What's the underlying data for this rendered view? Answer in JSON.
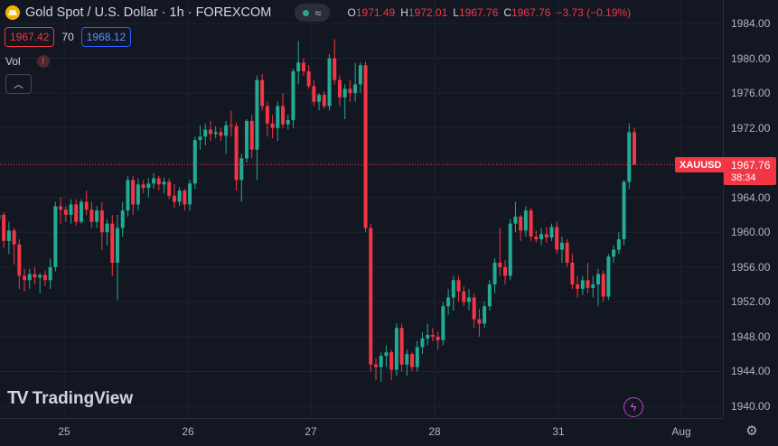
{
  "legend": {
    "symbol_title": "Gold Spot / U.S. Dollar · 1h · FOREXCOM",
    "logo_icon": "gold-bar-icon",
    "status_icons": [
      "market-open-dot-icon",
      "wave-icon"
    ],
    "ohlc": {
      "o_label": "O",
      "o_value": "1971.49",
      "h_label": "H",
      "h_value": "1972.01",
      "l_label": "L",
      "l_value": "1967.76",
      "c_label": "C",
      "c_value": "1967.76",
      "change": "−3.73 (−0.19%)"
    }
  },
  "bid_ask": {
    "bid": "1967.42",
    "spread": "70",
    "ask": "1968.12"
  },
  "volume": {
    "label": "Vol",
    "warning_icon": "warning-icon",
    "collapse_icon": "chevron-up-icon"
  },
  "branding": {
    "logo_mark": "TV",
    "logo_text": "TradingView"
  },
  "last_price": {
    "symbol": "XAUUSD",
    "value": "1967.76",
    "countdown": "38:34"
  },
  "icons": {
    "lightning": "lightning-icon",
    "settings": "gear-icon"
  },
  "colors": {
    "up": "#22ab94",
    "down": "#f23645",
    "background": "#131722",
    "grid": "#1e222d",
    "accent_blue": "#2962ff"
  },
  "chart_data": {
    "type": "candlestick",
    "timeframe": "1h",
    "ylim": [
      1938,
      1986
    ],
    "price_ticks": [
      1984.0,
      1980.0,
      1976.0,
      1972.0,
      1968.0,
      1964.0,
      1960.0,
      1956.0,
      1952.0,
      1948.0,
      1944.0,
      1940.0
    ],
    "time_ticks": [
      "25",
      "26",
      "27",
      "28",
      "31",
      "Aug"
    ],
    "last_price": 1967.76,
    "candles": [
      [
        1966.0,
        1968.0,
        1966.0,
        1967.5
      ],
      [
        1967.5,
        1968.0,
        1965.5,
        1965.8
      ],
      [
        1965.8,
        1967.5,
        1958.5,
        1960.0
      ],
      [
        1960.0,
        1962.5,
        1958.5,
        1961.5
      ],
      [
        1961.5,
        1963.0,
        1960.5,
        1962.0
      ],
      [
        1962.0,
        1962.3,
        1958.2,
        1959.0
      ],
      [
        1959.0,
        1961.2,
        1957.5,
        1960.2
      ],
      [
        1960.2,
        1960.5,
        1956.3,
        1958.6
      ],
      [
        1958.6,
        1959.2,
        1953.5,
        1955.0
      ],
      [
        1955.0,
        1955.8,
        1953.2,
        1954.5
      ],
      [
        1954.5,
        1955.8,
        1953.5,
        1955.2
      ],
      [
        1955.2,
        1956.0,
        1954.0,
        1954.8
      ],
      [
        1954.8,
        1955.3,
        1953.0,
        1955.1
      ],
      [
        1955.1,
        1955.6,
        1953.8,
        1954.5
      ],
      [
        1954.5,
        1957.0,
        1953.5,
        1956.0
      ],
      [
        1956.0,
        1963.5,
        1955.5,
        1963.0
      ],
      [
        1963.0,
        1964.0,
        1961.0,
        1962.6
      ],
      [
        1962.6,
        1963.0,
        1961.2,
        1962.0
      ],
      [
        1962.0,
        1963.8,
        1961.0,
        1963.2
      ],
      [
        1963.2,
        1963.8,
        1960.8,
        1961.2
      ],
      [
        1961.2,
        1963.8,
        1961.0,
        1963.5
      ],
      [
        1963.5,
        1964.8,
        1962.0,
        1962.6
      ],
      [
        1962.6,
        1963.5,
        1960.5,
        1961.2
      ],
      [
        1961.2,
        1963.0,
        1960.5,
        1962.5
      ],
      [
        1962.5,
        1963.5,
        1958.0,
        1960.0
      ],
      [
        1960.0,
        1961.5,
        1958.5,
        1961.0
      ],
      [
        1961.0,
        1962.0,
        1955.0,
        1956.5
      ],
      [
        1956.5,
        1962.0,
        1952.2,
        1960.5
      ],
      [
        1960.5,
        1963.5,
        1959.5,
        1962.5
      ],
      [
        1962.5,
        1966.5,
        1961.8,
        1966.0
      ],
      [
        1966.0,
        1966.5,
        1962.0,
        1963.2
      ],
      [
        1963.2,
        1966.2,
        1962.5,
        1965.5
      ],
      [
        1965.5,
        1966.0,
        1964.5,
        1965.1
      ],
      [
        1965.1,
        1966.2,
        1964.0,
        1965.6
      ],
      [
        1965.6,
        1966.8,
        1965.0,
        1966.2
      ],
      [
        1966.2,
        1966.5,
        1964.8,
        1965.5
      ],
      [
        1965.5,
        1966.3,
        1964.5,
        1965.8
      ],
      [
        1965.8,
        1966.2,
        1963.8,
        1964.2
      ],
      [
        1964.2,
        1965.5,
        1962.8,
        1963.5
      ],
      [
        1963.5,
        1965.2,
        1963.0,
        1964.8
      ],
      [
        1964.8,
        1965.0,
        1962.5,
        1963.2
      ],
      [
        1963.2,
        1966.0,
        1962.5,
        1965.6
      ],
      [
        1965.6,
        1971.0,
        1965.0,
        1970.6
      ],
      [
        1970.6,
        1972.3,
        1969.5,
        1971.0
      ],
      [
        1971.0,
        1972.5,
        1970.0,
        1971.8
      ],
      [
        1971.8,
        1972.8,
        1970.5,
        1971.3
      ],
      [
        1971.3,
        1972.2,
        1970.8,
        1971.5
      ],
      [
        1971.5,
        1972.0,
        1970.5,
        1971.1
      ],
      [
        1971.1,
        1972.8,
        1969.0,
        1972.3
      ],
      [
        1972.3,
        1974.0,
        1971.0,
        1972.2
      ],
      [
        1972.2,
        1972.6,
        1964.8,
        1966.0
      ],
      [
        1966.0,
        1969.0,
        1963.5,
        1968.5
      ],
      [
        1968.5,
        1973.0,
        1968.0,
        1972.8
      ],
      [
        1972.8,
        1973.5,
        1968.5,
        1969.5
      ],
      [
        1969.5,
        1978.0,
        1966.0,
        1977.5
      ],
      [
        1977.5,
        1978.2,
        1974.0,
        1974.5
      ],
      [
        1974.5,
        1975.0,
        1971.0,
        1972.5
      ],
      [
        1972.5,
        1973.5,
        1970.8,
        1972.0
      ],
      [
        1972.0,
        1975.0,
        1970.5,
        1974.5
      ],
      [
        1974.5,
        1976.0,
        1972.0,
        1972.4
      ],
      [
        1972.4,
        1973.5,
        1971.8,
        1972.9
      ],
      [
        1972.9,
        1978.8,
        1972.0,
        1978.5
      ],
      [
        1978.5,
        1982.0,
        1977.0,
        1979.5
      ],
      [
        1979.5,
        1980.0,
        1978.0,
        1978.5
      ],
      [
        1978.5,
        1979.2,
        1976.5,
        1976.8
      ],
      [
        1976.8,
        1977.5,
        1974.5,
        1975.0
      ],
      [
        1975.0,
        1976.0,
        1974.0,
        1975.8
      ],
      [
        1975.8,
        1976.2,
        1974.2,
        1974.5
      ],
      [
        1974.5,
        1980.5,
        1974.0,
        1980.0
      ],
      [
        1980.0,
        1982.2,
        1977.0,
        1977.5
      ],
      [
        1977.5,
        1978.0,
        1974.5,
        1975.5
      ],
      [
        1975.5,
        1977.0,
        1973.0,
        1976.5
      ],
      [
        1976.5,
        1977.5,
        1975.0,
        1976.0
      ],
      [
        1976.0,
        1979.5,
        1975.0,
        1977.0
      ],
      [
        1977.0,
        1979.5,
        1976.0,
        1979.2
      ],
      [
        1979.2,
        1979.6,
        1960.0,
        1960.5
      ],
      [
        1960.5,
        1961.0,
        1944.0,
        1944.8
      ],
      [
        1944.8,
        1945.5,
        1943.0,
        1944.5
      ],
      [
        1944.5,
        1946.2,
        1942.8,
        1945.8
      ],
      [
        1945.8,
        1947.0,
        1944.5,
        1946.2
      ],
      [
        1946.2,
        1946.5,
        1943.0,
        1944.2
      ],
      [
        1944.2,
        1949.5,
        1943.5,
        1949.0
      ],
      [
        1949.0,
        1949.5,
        1944.0,
        1944.8
      ],
      [
        1944.8,
        1946.5,
        1943.5,
        1946.0
      ],
      [
        1946.0,
        1946.2,
        1944.0,
        1944.5
      ],
      [
        1944.5,
        1947.5,
        1944.0,
        1946.8
      ],
      [
        1946.8,
        1948.5,
        1946.0,
        1947.8
      ],
      [
        1947.8,
        1949.5,
        1947.0,
        1948.2
      ],
      [
        1948.2,
        1949.0,
        1947.5,
        1948.0
      ],
      [
        1948.0,
        1948.6,
        1946.5,
        1947.6
      ],
      [
        1947.6,
        1952.0,
        1947.0,
        1951.5
      ],
      [
        1951.5,
        1953.5,
        1950.5,
        1952.5
      ],
      [
        1952.5,
        1955.0,
        1951.0,
        1954.5
      ],
      [
        1954.5,
        1955.0,
        1952.0,
        1953.2
      ],
      [
        1953.2,
        1953.8,
        1951.5,
        1952.0
      ],
      [
        1952.0,
        1953.5,
        1951.0,
        1952.5
      ],
      [
        1952.5,
        1953.0,
        1949.0,
        1950.0
      ],
      [
        1950.0,
        1951.2,
        1948.0,
        1949.5
      ],
      [
        1949.5,
        1952.0,
        1949.0,
        1951.5
      ],
      [
        1951.5,
        1954.5,
        1951.0,
        1954.0
      ],
      [
        1954.0,
        1957.0,
        1953.0,
        1956.5
      ],
      [
        1956.5,
        1960.5,
        1955.0,
        1956.0
      ],
      [
        1956.0,
        1956.8,
        1954.0,
        1955.0
      ],
      [
        1955.0,
        1961.5,
        1954.5,
        1961.0
      ],
      [
        1961.0,
        1963.5,
        1960.0,
        1961.8
      ],
      [
        1961.8,
        1962.0,
        1959.0,
        1960.2
      ],
      [
        1960.2,
        1963.0,
        1959.5,
        1962.5
      ],
      [
        1962.5,
        1962.8,
        1959.0,
        1959.5
      ],
      [
        1959.5,
        1960.2,
        1958.8,
        1959.2
      ],
      [
        1959.2,
        1960.5,
        1958.5,
        1959.8
      ],
      [
        1959.8,
        1960.6,
        1958.8,
        1959.4
      ],
      [
        1959.4,
        1961.0,
        1959.0,
        1960.6
      ],
      [
        1960.6,
        1961.2,
        1957.5,
        1958.0
      ],
      [
        1958.0,
        1959.5,
        1956.5,
        1958.8
      ],
      [
        1958.8,
        1959.2,
        1956.0,
        1956.5
      ],
      [
        1956.5,
        1957.5,
        1953.5,
        1954.0
      ],
      [
        1954.0,
        1955.0,
        1952.5,
        1953.5
      ],
      [
        1953.5,
        1955.0,
        1952.8,
        1954.5
      ],
      [
        1954.5,
        1956.5,
        1953.0,
        1953.6
      ],
      [
        1953.6,
        1955.0,
        1952.5,
        1954.0
      ],
      [
        1954.0,
        1955.8,
        1951.5,
        1955.2
      ],
      [
        1955.2,
        1955.6,
        1952.0,
        1952.6
      ],
      [
        1952.6,
        1957.5,
        1952.2,
        1957.2
      ],
      [
        1957.2,
        1958.5,
        1956.5,
        1958.0
      ],
      [
        1958.0,
        1960.0,
        1957.5,
        1959.2
      ],
      [
        1959.2,
        1966.0,
        1958.5,
        1965.8
      ],
      [
        1965.8,
        1972.5,
        1965.0,
        1971.5
      ],
      [
        1971.5,
        1972.01,
        1967.76,
        1967.76
      ]
    ]
  }
}
